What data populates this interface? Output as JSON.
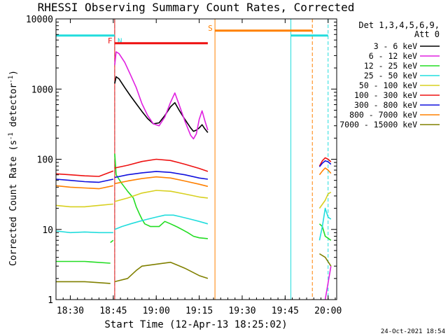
{
  "chart_data": {
    "type": "line",
    "title": "RHESSI Observing Summary Count Rates, Corrected",
    "xlabel": "Start Time (12-Apr-13 18:25:02)",
    "ylabel_main": "Corrected Count Rate (s",
    "ylabel_sup1": "-1",
    "ylabel_mid": " detector",
    "ylabel_sup2": "-1",
    "ylabel_end": ")",
    "x_unit": "minutes since 18:25:02",
    "xlim": [
      0,
      98
    ],
    "ylim": [
      1,
      10000
    ],
    "yscale": "log",
    "xticks": [
      {
        "label": "18:30",
        "x": 5
      },
      {
        "label": "18:45",
        "x": 20
      },
      {
        "label": "19:00",
        "x": 35
      },
      {
        "label": "19:15",
        "x": 50
      },
      {
        "label": "19:30",
        "x": 65
      },
      {
        "label": "19:45",
        "x": 80
      },
      {
        "label": "20:00",
        "x": 95
      }
    ],
    "yticks": [
      {
        "label": "1",
        "y": 1
      },
      {
        "label": "10",
        "y": 10
      },
      {
        "label": "100",
        "y": 100
      },
      {
        "label": "1000",
        "y": 1000
      },
      {
        "label": "10000",
        "y": 10000
      }
    ],
    "legend": {
      "position": "right",
      "header1": "Det 1,3,4,5,6,9,",
      "header2": "Att 0",
      "entries": [
        {
          "label": "3 - 6 keV",
          "color": "#000000"
        },
        {
          "label": "6 - 12 keV",
          "color": "#e020e0"
        },
        {
          "label": "12 - 25 keV",
          "color": "#22dd22"
        },
        {
          "label": "25 - 50 keV",
          "color": "#22dddd"
        },
        {
          "label": "50 - 100 keV",
          "color": "#d8d020"
        },
        {
          "label": "100 - 300 keV",
          "color": "#ee1111"
        },
        {
          "label": "300 - 800 keV",
          "color": "#1111dd"
        },
        {
          "label": "800 - 7000 keV",
          "color": "#ff8000"
        },
        {
          "label": "7000 - 15000 keV",
          "color": "#808000"
        }
      ]
    },
    "series": [
      {
        "name": "3 - 6 keV",
        "color": "#000000",
        "segments": [
          [
            [
              20.5,
              1200
            ],
            [
              21,
              1500
            ],
            [
              22,
              1400
            ],
            [
              24,
              1050
            ],
            [
              26,
              800
            ],
            [
              28,
              620
            ],
            [
              30,
              480
            ],
            [
              32,
              380
            ],
            [
              34,
              320
            ],
            [
              36,
              330
            ],
            [
              38,
              420
            ],
            [
              40,
              560
            ],
            [
              41.5,
              640
            ],
            [
              43,
              500
            ],
            [
              45,
              370
            ],
            [
              47,
              280
            ],
            [
              48,
              250
            ],
            [
              49,
              260
            ],
            [
              50,
              280
            ],
            [
              51,
              310
            ],
            [
              52,
              270
            ],
            [
              53,
              240
            ]
          ]
        ]
      },
      {
        "name": "6 - 12 keV",
        "color": "#e020e0",
        "segments": [
          [
            [
              20.5,
              2200
            ],
            [
              21,
              3400
            ],
            [
              22,
              3200
            ],
            [
              24,
              2400
            ],
            [
              26,
              1600
            ],
            [
              28,
              1050
            ],
            [
              30,
              620
            ],
            [
              32,
              420
            ],
            [
              34,
              320
            ],
            [
              36,
              300
            ],
            [
              38,
              400
            ],
            [
              40,
              650
            ],
            [
              41.5,
              880
            ],
            [
              43,
              600
            ],
            [
              45,
              350
            ],
            [
              47,
              220
            ],
            [
              48,
              195
            ],
            [
              49,
              230
            ],
            [
              50,
              370
            ],
            [
              51,
              490
            ],
            [
              52,
              350
            ],
            [
              53,
              260
            ]
          ],
          [
            [
              94,
              1
            ],
            [
              96,
              3
            ]
          ]
        ]
      },
      {
        "name": "12 - 25 keV",
        "color": "#22dd22",
        "segments": [
          [
            [
              0,
              3.5
            ],
            [
              10,
              3.5
            ],
            [
              19,
              3.3
            ]
          ],
          [
            [
              19,
              6.5
            ],
            [
              20,
              7
            ]
          ],
          [
            [
              20.5,
              120
            ],
            [
              21,
              60
            ],
            [
              23,
              45
            ],
            [
              25,
              35
            ],
            [
              27,
              28
            ],
            [
              28,
              21
            ],
            [
              29,
              17
            ],
            [
              30,
              14
            ],
            [
              31,
              12
            ],
            [
              33,
              11
            ],
            [
              36,
              11
            ],
            [
              38,
              13
            ],
            [
              40,
              12
            ],
            [
              42,
              11
            ],
            [
              44,
              10
            ],
            [
              46,
              9
            ],
            [
              48,
              8
            ],
            [
              50,
              7.6
            ],
            [
              53,
              7.4
            ]
          ],
          [
            [
              92,
              12
            ],
            [
              93,
              11
            ],
            [
              94,
              8
            ],
            [
              96,
              7
            ]
          ]
        ]
      },
      {
        "name": "25 - 50 keV",
        "color": "#22dddd",
        "segments": [
          [
            [
              0,
              9.5
            ],
            [
              5,
              9
            ],
            [
              10,
              9.2
            ],
            [
              15,
              9
            ],
            [
              20,
              9
            ]
          ],
          [
            [
              20.5,
              10
            ],
            [
              23,
              11
            ],
            [
              26,
              12
            ],
            [
              29,
              13
            ],
            [
              32,
              14
            ],
            [
              35,
              15
            ],
            [
              38,
              16
            ],
            [
              41,
              16
            ],
            [
              44,
              15
            ],
            [
              47,
              14
            ],
            [
              50,
              13
            ],
            [
              53,
              12
            ]
          ],
          [
            [
              92,
              7
            ],
            [
              93,
              11
            ],
            [
              94,
              20
            ],
            [
              95,
              15
            ],
            [
              96,
              14
            ]
          ]
        ]
      },
      {
        "name": "50 - 100 keV",
        "color": "#d8d020",
        "segments": [
          [
            [
              0,
              22
            ],
            [
              5,
              21
            ],
            [
              10,
              21
            ],
            [
              15,
              22
            ],
            [
              20,
              23
            ]
          ],
          [
            [
              20.5,
              25
            ],
            [
              25,
              28
            ],
            [
              30,
              33
            ],
            [
              35,
              36
            ],
            [
              40,
              35
            ],
            [
              45,
              32
            ],
            [
              50,
              29
            ],
            [
              53,
              28
            ]
          ],
          [
            [
              92,
              20
            ],
            [
              94,
              26
            ],
            [
              95,
              32
            ],
            [
              96,
              34
            ]
          ]
        ]
      },
      {
        "name": "100 - 300 keV",
        "color": "#ee1111",
        "segments": [
          [
            [
              0,
              62
            ],
            [
              5,
              60
            ],
            [
              10,
              58
            ],
            [
              15,
              57
            ],
            [
              20,
              68
            ]
          ],
          [
            [
              20.5,
              75
            ],
            [
              25,
              82
            ],
            [
              30,
              93
            ],
            [
              35,
              100
            ],
            [
              40,
              96
            ],
            [
              45,
              85
            ],
            [
              50,
              74
            ],
            [
              53,
              67
            ]
          ],
          [
            [
              92,
              80
            ],
            [
              93,
              95
            ],
            [
              94,
              105
            ],
            [
              95,
              100
            ],
            [
              96,
              92
            ]
          ]
        ]
      },
      {
        "name": "300 - 800 keV",
        "color": "#1111dd",
        "segments": [
          [
            [
              0,
              52
            ],
            [
              5,
              50
            ],
            [
              10,
              48
            ],
            [
              15,
              47
            ],
            [
              20,
              52
            ]
          ],
          [
            [
              20.5,
              55
            ],
            [
              25,
              60
            ],
            [
              30,
              64
            ],
            [
              35,
              67
            ],
            [
              40,
              65
            ],
            [
              45,
              60
            ],
            [
              50,
              54
            ],
            [
              53,
              52
            ]
          ],
          [
            [
              92,
              78
            ],
            [
              93,
              88
            ],
            [
              94,
              95
            ],
            [
              95,
              92
            ],
            [
              96,
              85
            ]
          ]
        ]
      },
      {
        "name": "800 - 7000 keV",
        "color": "#ff8000",
        "segments": [
          [
            [
              0,
              42
            ],
            [
              5,
              40
            ],
            [
              10,
              39
            ],
            [
              15,
              38
            ],
            [
              20,
              42
            ]
          ],
          [
            [
              20.5,
              45
            ],
            [
              25,
              49
            ],
            [
              30,
              53
            ],
            [
              35,
              56
            ],
            [
              40,
              54
            ],
            [
              45,
              49
            ],
            [
              50,
              44
            ],
            [
              53,
              41
            ]
          ],
          [
            [
              92,
              60
            ],
            [
              93,
              68
            ],
            [
              94,
              75
            ],
            [
              95,
              70
            ],
            [
              96,
              63
            ]
          ]
        ]
      },
      {
        "name": "7000 - 15000 keV",
        "color": "#808000",
        "segments": [
          [
            [
              0,
              1.8
            ],
            [
              10,
              1.8
            ],
            [
              19,
              1.7
            ]
          ],
          [
            [
              20.5,
              1.8
            ],
            [
              25,
              2.0
            ],
            [
              28,
              2.6
            ],
            [
              30,
              3.0
            ],
            [
              35,
              3.2
            ],
            [
              40,
              3.4
            ],
            [
              45,
              2.8
            ],
            [
              50,
              2.2
            ],
            [
              53,
              2.0
            ]
          ],
          [
            [
              92,
              4.5
            ],
            [
              94,
              4.0
            ],
            [
              96,
              3.0
            ]
          ]
        ]
      }
    ],
    "flags": [
      {
        "label": "N",
        "color": "#22dddd",
        "y": 5800,
        "x_ranges": [
          [
            0,
            20.5
          ],
          [
            82,
            95
          ]
        ]
      },
      {
        "label": "F",
        "color": "#ee1111",
        "y": 4500,
        "x_ranges": [
          [
            20.5,
            53
          ]
        ]
      },
      {
        "label": "S",
        "color": "#ff8000",
        "y": 6800,
        "x_ranges": [
          [
            55.5,
            89.5
          ]
        ]
      }
    ],
    "markers": [
      {
        "color": "#22dddd",
        "x": 0,
        "style": "solid"
      },
      {
        "color": "#22dddd",
        "x": 20.5,
        "style": "dashed"
      },
      {
        "color": "#ee1111",
        "x": 20.5,
        "style": "solid"
      },
      {
        "color": "#ff8000",
        "x": 55.5,
        "style": "solid"
      },
      {
        "color": "#22dddd",
        "x": 82,
        "style": "solid"
      },
      {
        "color": "#ff8000",
        "x": 89.5,
        "style": "dashed"
      },
      {
        "color": "#22dddd",
        "x": 95,
        "style": "dashed"
      }
    ]
  },
  "footer": {
    "timestamp": "24-Oct-2021 18:54"
  }
}
